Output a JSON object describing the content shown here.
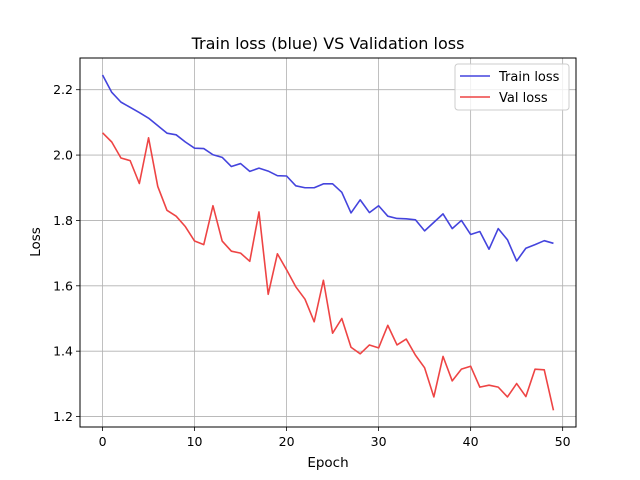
{
  "chart_data": {
    "type": "line",
    "title": "Train loss (blue) VS Validation loss",
    "xlabel": "Epoch",
    "ylabel": "Loss",
    "xlim": [
      -2.45,
      51.45
    ],
    "ylim": [
      1.168,
      2.297
    ],
    "x_ticks": [
      0,
      10,
      20,
      30,
      40,
      50
    ],
    "y_ticks": [
      1.2,
      1.4,
      1.6,
      1.8,
      2.0,
      2.2
    ],
    "y_tick_labels": [
      "1.2",
      "1.4",
      "1.6",
      "1.8",
      "2.0",
      "2.2"
    ],
    "grid": true,
    "legend_position": "top-right",
    "x": [
      0,
      1,
      2,
      3,
      4,
      5,
      6,
      7,
      8,
      9,
      10,
      11,
      12,
      13,
      14,
      15,
      16,
      17,
      18,
      19,
      20,
      21,
      22,
      23,
      24,
      25,
      26,
      27,
      28,
      29,
      30,
      31,
      32,
      33,
      34,
      35,
      36,
      37,
      38,
      39,
      40,
      41,
      42,
      43,
      44,
      45,
      46,
      47,
      48,
      49
    ],
    "series": [
      {
        "name": "Train loss",
        "color": "#4444dd",
        "values": [
          2.245,
          2.192,
          2.162,
          2.146,
          2.13,
          2.113,
          2.09,
          2.067,
          2.062,
          2.04,
          2.021,
          2.02,
          2.001,
          1.993,
          1.965,
          1.974,
          1.95,
          1.96,
          1.951,
          1.937,
          1.936,
          1.906,
          1.9,
          1.9,
          1.912,
          1.912,
          1.886,
          1.823,
          1.863,
          1.824,
          1.845,
          1.813,
          1.806,
          1.805,
          1.802,
          1.768,
          1.794,
          1.82,
          1.775,
          1.8,
          1.757,
          1.766,
          1.712,
          1.775,
          1.741,
          1.676,
          1.715,
          1.726,
          1.738,
          1.73
        ]
      },
      {
        "name": "Val loss",
        "color": "#ee4444",
        "values": [
          2.068,
          2.04,
          1.991,
          1.983,
          1.913,
          2.053,
          1.904,
          1.831,
          1.813,
          1.781,
          1.737,
          1.726,
          1.845,
          1.737,
          1.706,
          1.7,
          1.675,
          1.826,
          1.574,
          1.698,
          1.649,
          1.597,
          1.559,
          1.49,
          1.617,
          1.455,
          1.5,
          1.412,
          1.392,
          1.419,
          1.41,
          1.479,
          1.419,
          1.437,
          1.388,
          1.349,
          1.26,
          1.384,
          1.309,
          1.345,
          1.354,
          1.29,
          1.296,
          1.29,
          1.26,
          1.301,
          1.261,
          1.345,
          1.343,
          1.219
        ]
      }
    ]
  }
}
